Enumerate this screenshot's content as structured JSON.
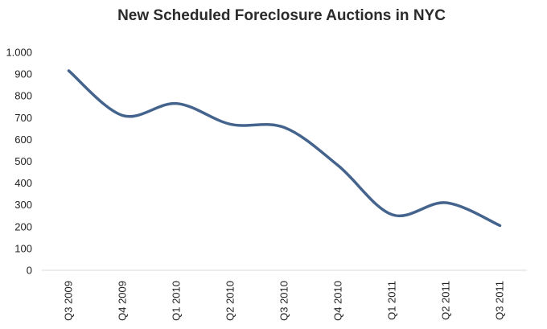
{
  "chart_data": {
    "type": "line",
    "title": "New Scheduled Foreclosure Auctions in NYC",
    "xlabel": "",
    "ylabel": "",
    "categories": [
      "Q3 2009",
      "Q4 2009",
      "Q1 2010",
      "Q2 2010",
      "Q3 2010",
      "Q4 2010",
      "Q1 2011",
      "Q2 2011",
      "Q3 2011"
    ],
    "series": [
      {
        "values": [
          915,
          710,
          765,
          670,
          655,
          480,
          255,
          310,
          205
        ],
        "color": "#44648d"
      }
    ],
    "ylim": [
      0,
      1000
    ],
    "yticks": [
      {
        "value": 0,
        "label": "0"
      },
      {
        "value": 100,
        "label": "100"
      },
      {
        "value": 200,
        "label": "200"
      },
      {
        "value": 300,
        "label": "300"
      },
      {
        "value": 400,
        "label": "400"
      },
      {
        "value": 500,
        "label": "500"
      },
      {
        "value": 600,
        "label": "600"
      },
      {
        "value": 700,
        "label": "700"
      },
      {
        "value": 800,
        "label": "800"
      },
      {
        "value": 900,
        "label": "900"
      },
      {
        "value": 1000,
        "label": "1.000"
      }
    ],
    "grid": false,
    "legend": "none",
    "smooth": true,
    "axis_color": "#d9d9d9"
  }
}
